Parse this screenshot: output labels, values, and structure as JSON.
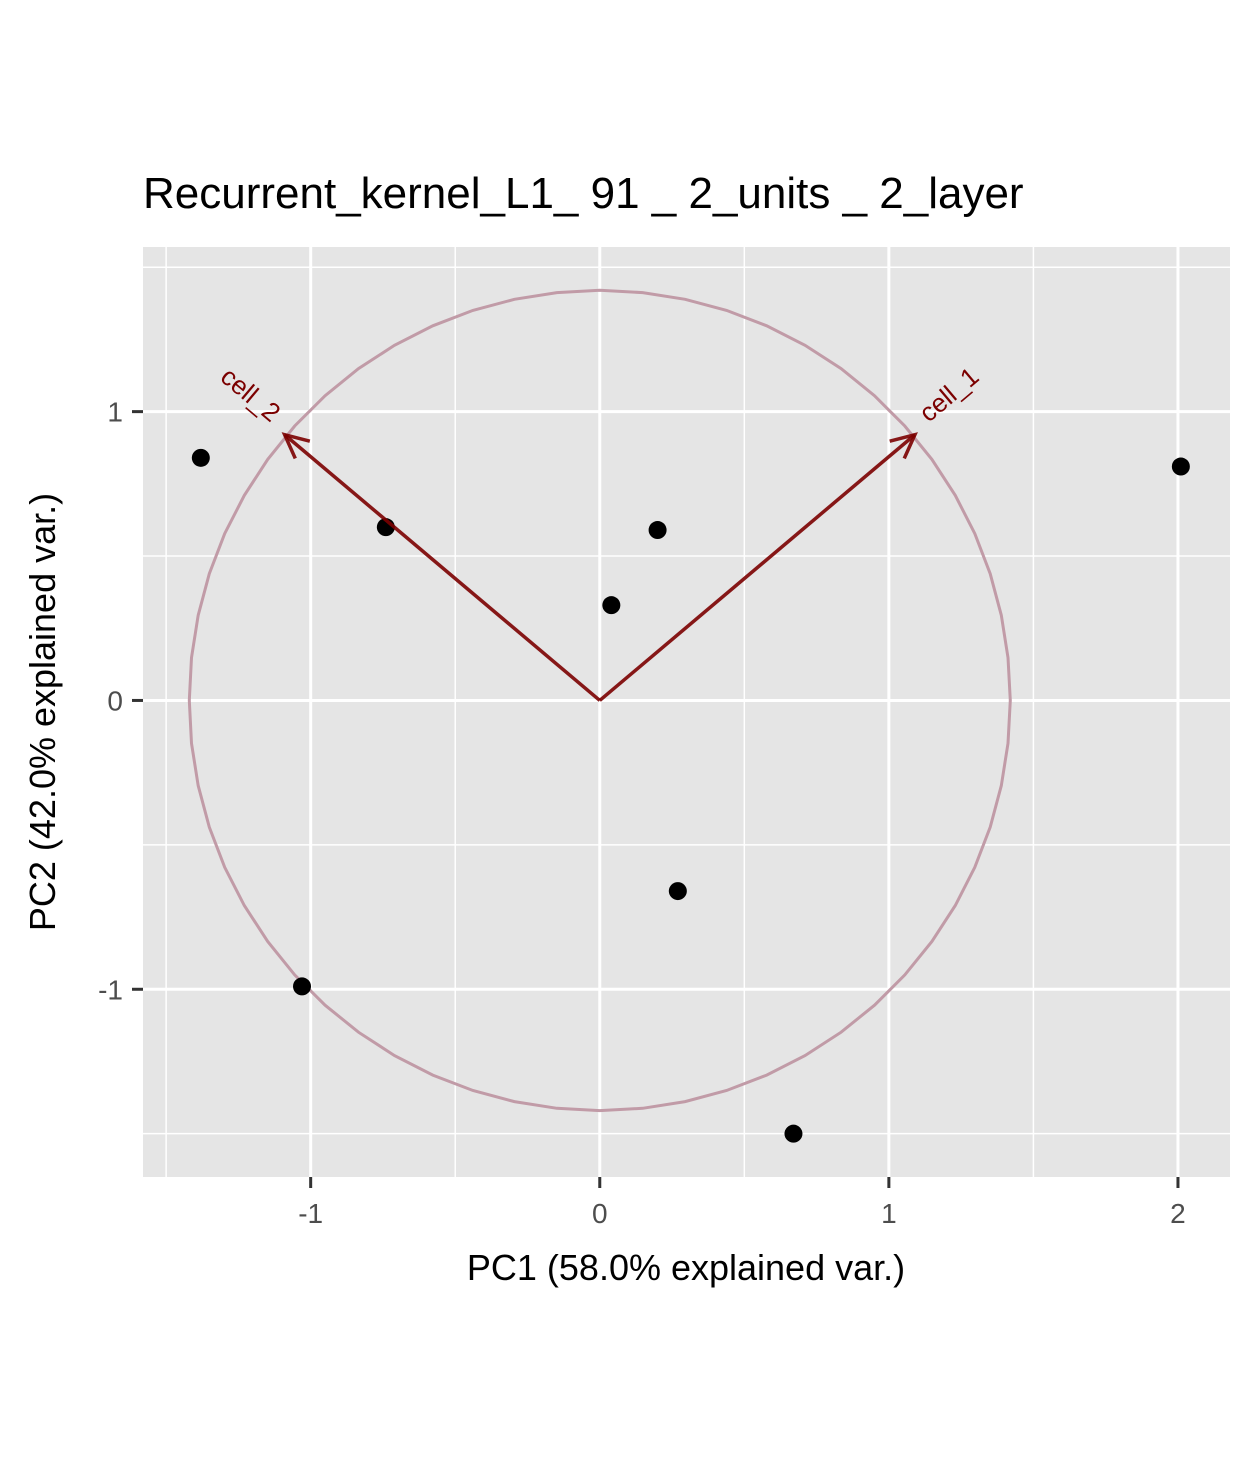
{
  "chart_data": {
    "type": "scatter",
    "title": "Recurrent_kernel_L1_ 91 _ 2_units _ 2_layer",
    "xlabel": "PC1 (58.0% explained var.)",
    "ylabel": "PC2 (42.0% explained var.)",
    "xlim": [
      -1.58,
      2.18
    ],
    "ylim": [
      -1.65,
      1.57
    ],
    "x_ticks": [
      -1,
      0,
      1,
      2
    ],
    "y_ticks": [
      -1,
      0,
      1
    ],
    "x_tick_labels": [
      "-1",
      "0",
      "1",
      "2"
    ],
    "y_tick_labels": [
      "-1",
      "0",
      "1"
    ],
    "grid": true,
    "points": [
      {
        "x": -1.38,
        "y": 0.84
      },
      {
        "x": -0.74,
        "y": 0.6
      },
      {
        "x": 0.2,
        "y": 0.59
      },
      {
        "x": 0.04,
        "y": 0.33
      },
      {
        "x": 2.01,
        "y": 0.81
      },
      {
        "x": 0.27,
        "y": -0.66
      },
      {
        "x": -1.03,
        "y": -0.99
      },
      {
        "x": 0.67,
        "y": -1.5
      }
    ],
    "vectors": [
      {
        "label": "cell_1",
        "x": 1.09,
        "y": 0.92
      },
      {
        "label": "cell_2",
        "x": -1.09,
        "y": 0.92
      }
    ],
    "circle_radius": 1.42,
    "colors": {
      "panel": "#e5e5e5",
      "grid": "#ffffff",
      "points": "#000000",
      "vector": "#7b0000",
      "circle": "#c19ba7"
    }
  }
}
